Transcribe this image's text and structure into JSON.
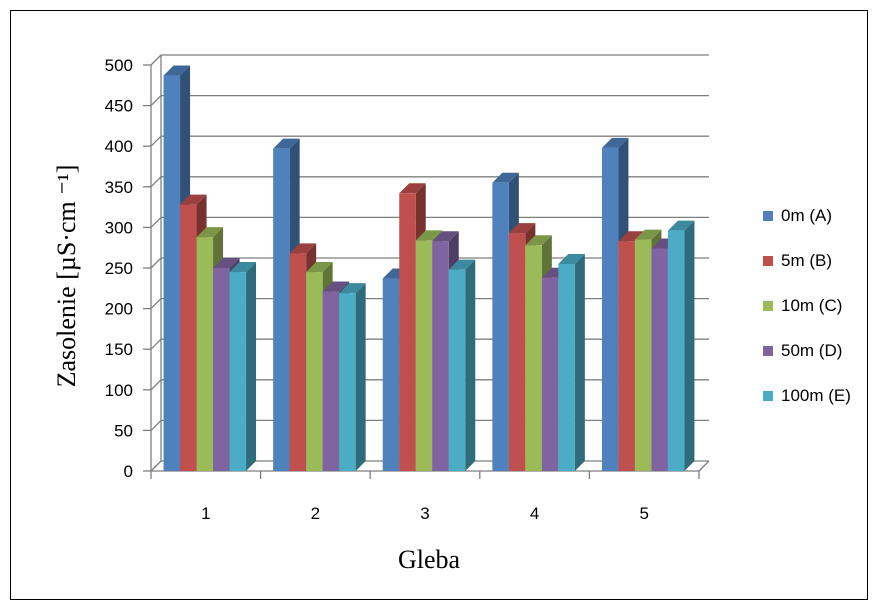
{
  "chart_data": {
    "type": "bar",
    "categories": [
      "1",
      "2",
      "3",
      "4",
      "5"
    ],
    "series": [
      {
        "name": "0m (A)",
        "color": "#4F81BD",
        "values": [
          487,
          397,
          237,
          355,
          398
        ]
      },
      {
        "name": "5m (B)",
        "color": "#C0504D",
        "values": [
          328,
          268,
          342,
          293,
          283
        ]
      },
      {
        "name": "10m (C)",
        "color": "#9BBB59",
        "values": [
          288,
          245,
          284,
          278,
          285
        ]
      },
      {
        "name": "50m (D)",
        "color": "#8064A2",
        "values": [
          250,
          221,
          283,
          238,
          274
        ]
      },
      {
        "name": "100m (E)",
        "color": "#4BACC6",
        "values": [
          245,
          219,
          248,
          255,
          296
        ]
      }
    ],
    "yticks": [
      "0",
      "50",
      "100",
      "150",
      "200",
      "250",
      "300",
      "350",
      "400",
      "450",
      "500"
    ],
    "ylim": [
      0,
      500
    ],
    "xlabel": "Gleba",
    "ylabel": "Zasolenie [µS·cm ⁻¹]",
    "grid": true,
    "legend_position": "right",
    "style": "3d-clustered-bar"
  }
}
